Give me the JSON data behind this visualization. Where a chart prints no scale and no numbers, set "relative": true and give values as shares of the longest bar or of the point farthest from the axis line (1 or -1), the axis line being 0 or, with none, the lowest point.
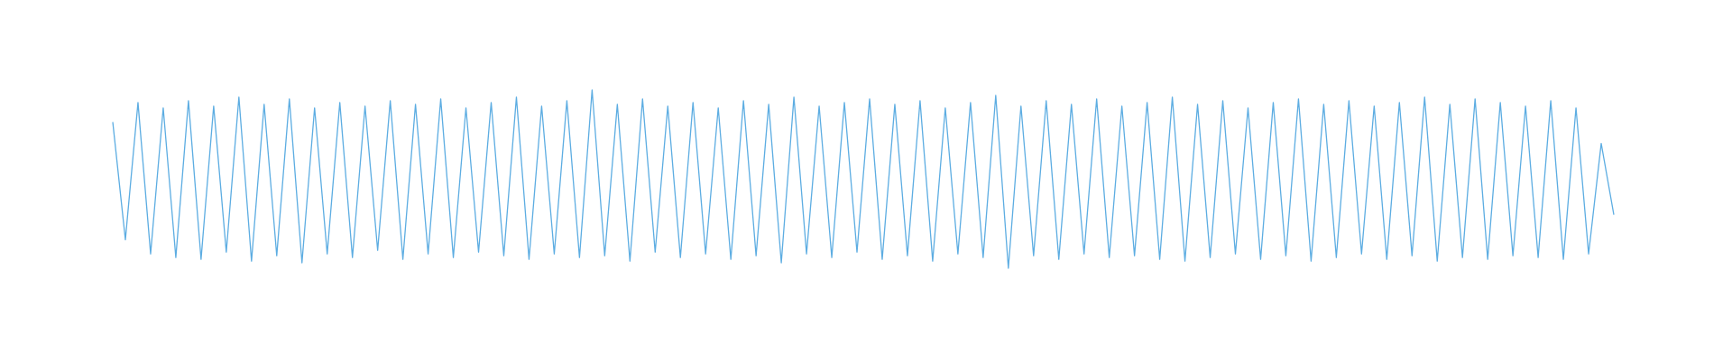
{
  "chart_data": {
    "type": "line",
    "relative": true,
    "categories": [
      null,
      null,
      null,
      null,
      null,
      null,
      null,
      null,
      null,
      null,
      null,
      null,
      null,
      null,
      null,
      null,
      null,
      null,
      null,
      null,
      null,
      null,
      null,
      null,
      null,
      null,
      null,
      null,
      null,
      null,
      null,
      null,
      null,
      null,
      null,
      null,
      null,
      null,
      null,
      null,
      null,
      null,
      null,
      null,
      null,
      null,
      null,
      null,
      null,
      null,
      null,
      null,
      null,
      null,
      null,
      null,
      null,
      null,
      null,
      null,
      null,
      null,
      null,
      null,
      null,
      null,
      null,
      null,
      null,
      null,
      null,
      null,
      null,
      null,
      null,
      null,
      null,
      null,
      null,
      null,
      null,
      null,
      null,
      null,
      null,
      null,
      null,
      null,
      null,
      null,
      null,
      null,
      null,
      null,
      null,
      null,
      null,
      null,
      null,
      null,
      null,
      null,
      null,
      null,
      null,
      null,
      null,
      null,
      null,
      null,
      null,
      null,
      null,
      null,
      null,
      null,
      null,
      null,
      null,
      null
    ],
    "series": [
      {
        "color": "#5dade2",
        "values": [
          0.82,
          0.16,
          0.93,
          0.08,
          0.9,
          0.06,
          0.94,
          0.05,
          0.91,
          0.09,
          0.96,
          0.04,
          0.92,
          0.07,
          0.95,
          0.03,
          0.9,
          0.08,
          0.93,
          0.06,
          0.91,
          0.1,
          0.94,
          0.05,
          0.92,
          0.08,
          0.95,
          0.06,
          0.9,
          0.09,
          0.93,
          0.07,
          0.96,
          0.05,
          0.91,
          0.08,
          0.94,
          0.06,
          1,
          0.07,
          0.92,
          0.04,
          0.95,
          0.09,
          0.91,
          0.06,
          0.93,
          0.08,
          0.9,
          0.05,
          0.94,
          0.07,
          0.92,
          0.03,
          0.96,
          0.08,
          0.91,
          0.06,
          0.93,
          0.09,
          0.95,
          0.05,
          0.92,
          0.07,
          0.94,
          0.04,
          0.9,
          0.08,
          0.93,
          0.06,
          0.97,
          0,
          0.91,
          0.07,
          0.94,
          0.05,
          0.92,
          0.08,
          0.95,
          0.06,
          0.91,
          0.07,
          0.93,
          0.05,
          0.96,
          0.04,
          0.92,
          0.06,
          0.94,
          0.08,
          0.9,
          0.05,
          0.93,
          0.07,
          0.95,
          0.04,
          0.92,
          0.06,
          0.94,
          0.08,
          0.91,
          0.05,
          0.93,
          0.07,
          0.96,
          0.04,
          0.92,
          0.06,
          0.95,
          0.05,
          0.93,
          0.07,
          0.91,
          0.06,
          0.94,
          0.05,
          0.9,
          0.08,
          0.7,
          0.3
        ]
      }
    ],
    "marker": "none",
    "line_style": "solid"
  }
}
